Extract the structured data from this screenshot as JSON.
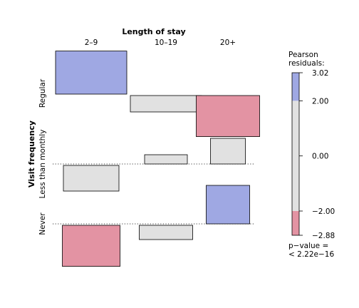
{
  "chart_data": {
    "type": "association-plot",
    "column_variable": "Length of stay",
    "row_variable": "Visit frequency",
    "columns": [
      "2–9",
      "10–19",
      "20+"
    ],
    "rows": [
      "Regular",
      "Less than monthly",
      "Never"
    ],
    "residuals": [
      [
        3.02,
        -1.15,
        -2.88
      ],
      [
        -1.8,
        0.65,
        1.8
      ],
      [
        -2.88,
        -1.0,
        2.7
      ]
    ],
    "expected_relative_width": [
      [
        1.0,
        1.0,
        0.89
      ],
      [
        0.78,
        0.6,
        0.49
      ],
      [
        0.81,
        0.75,
        0.61
      ]
    ],
    "legend": {
      "title_line1": "Pearson",
      "title_line2": "residuals:",
      "max": 3.02,
      "min": -2.88,
      "ticks": [
        "3.02",
        "2.00",
        "0.00",
        "−2.00",
        "−2.88"
      ],
      "tick_values": [
        3.02,
        2.0,
        0.0,
        -2.0,
        -2.88
      ],
      "pvalue_line1": "p−value =",
      "pvalue_line2": "< 2.22e−16"
    },
    "colors": {
      "positive": "#9FA8E3",
      "neutral": "#E1E1E1",
      "negative": "#E393A3"
    },
    "shading_thresholds": [
      2,
      4
    ]
  }
}
